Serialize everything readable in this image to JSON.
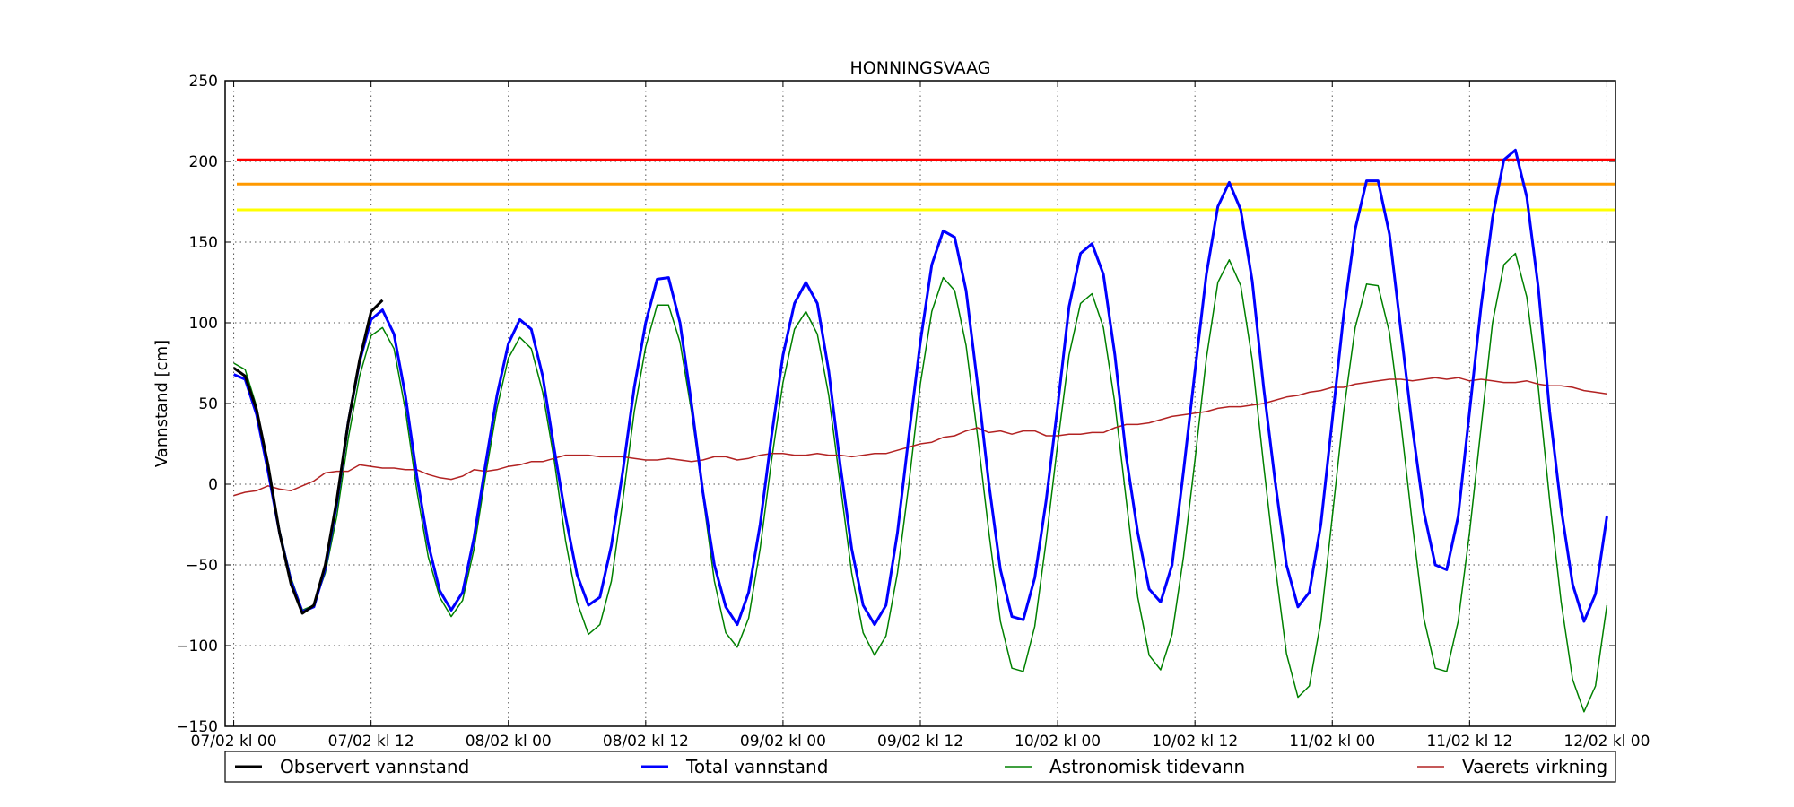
{
  "chart_data": {
    "type": "line",
    "title": "HONNINGSVAAG",
    "xlabel": "",
    "ylabel": "Vannstand [cm]",
    "ylim": [
      -150,
      250
    ],
    "yticks": [
      -150,
      -100,
      -50,
      0,
      50,
      100,
      150,
      200,
      250
    ],
    "ytick_labels": [
      "−150",
      "−100",
      "−50",
      "0",
      "50",
      "100",
      "150",
      "200",
      "250"
    ],
    "x_unit": "hours since 07/02 kl 00",
    "xlim": [
      -0.75,
      120.75
    ],
    "xticks": [
      0,
      12,
      24,
      36,
      48,
      60,
      72,
      84,
      96,
      108,
      120
    ],
    "xtick_labels": [
      "07/02 kl 00",
      "07/02 kl 12",
      "08/02 kl 00",
      "08/02 kl 12",
      "09/02 kl 00",
      "09/02 kl 12",
      "10/02 kl 00",
      "10/02 kl 12",
      "11/02 kl 00",
      "11/02 kl 12",
      "12/02 kl 00"
    ],
    "grid": true,
    "legend_position": "below",
    "thresholds": [
      {
        "value": 201,
        "color": "#ff0000"
      },
      {
        "value": 186,
        "color": "#ff9900"
      },
      {
        "value": 170,
        "color": "#ffff00"
      }
    ],
    "series": [
      {
        "name": "Observert vannstand",
        "color": "#000000",
        "width": 3,
        "x": [
          0,
          1,
          2,
          3,
          4,
          5,
          6,
          7,
          8,
          9,
          10,
          11,
          12,
          13,
          14
        ],
        "y": [
          72,
          67,
          46,
          12,
          -30,
          -62,
          -80,
          -75,
          -50,
          -10,
          38,
          77,
          107,
          114,
          null
        ]
      },
      {
        "name": "Total vannstand",
        "color": "#0000ff",
        "width": 3,
        "x": [
          0,
          1,
          2,
          3,
          4,
          5,
          6,
          7,
          8,
          9,
          10,
          11,
          12,
          13,
          14,
          15,
          16,
          17,
          18,
          19,
          20,
          21,
          22,
          23,
          24,
          25,
          26,
          27,
          28,
          29,
          30,
          31,
          32,
          33,
          34,
          35,
          36,
          37,
          38,
          39,
          40,
          41,
          42,
          43,
          44,
          45,
          46,
          47,
          48,
          49,
          50,
          51,
          52,
          53,
          54,
          55,
          56,
          57,
          58,
          59,
          60,
          61,
          62,
          63,
          64,
          65,
          66,
          67,
          68,
          69,
          70,
          71,
          72,
          73,
          74,
          75,
          76,
          77,
          78,
          79,
          80,
          81,
          82,
          83,
          84,
          85,
          86,
          87,
          88,
          89,
          90,
          91,
          92,
          93,
          94,
          95,
          96,
          97,
          98,
          99,
          100,
          101,
          102,
          103,
          104,
          105,
          106,
          107,
          108,
          109,
          110,
          111,
          112,
          113,
          114,
          115,
          116,
          117,
          118,
          119,
          120,
          121
        ],
        "y": [
          68,
          65,
          43,
          8,
          -30,
          -60,
          -79,
          -76,
          -52,
          -12,
          38,
          76,
          102,
          108,
          93,
          55,
          5,
          -37,
          -66,
          -78,
          -67,
          -33,
          12,
          55,
          87,
          102,
          96,
          67,
          22,
          -20,
          -56,
          -75,
          -70,
          -38,
          8,
          60,
          100,
          127,
          128,
          100,
          50,
          -5,
          -50,
          -76,
          -87,
          -67,
          -25,
          30,
          80,
          112,
          125,
          112,
          70,
          12,
          -40,
          -75,
          -87,
          -75,
          -30,
          30,
          88,
          136,
          157,
          153,
          120,
          62,
          0,
          -53,
          -82,
          -84,
          -58,
          -10,
          48,
          110,
          143,
          149,
          130,
          80,
          17,
          -30,
          -65,
          -73,
          -50,
          8,
          70,
          130,
          172,
          187,
          170,
          126,
          60,
          2,
          -50,
          -76,
          -67,
          -25,
          40,
          105,
          158,
          188,
          188,
          155,
          95,
          35,
          -17,
          -50,
          -53,
          -20,
          45,
          110,
          165,
          201,
          207,
          178,
          122,
          45,
          -15,
          -62,
          -85,
          -68,
          -20,
          null
        ]
      },
      {
        "name": "Astronomisk tidevann",
        "color": "#008000",
        "width": 1.5,
        "x": [
          0,
          1,
          2,
          3,
          4,
          5,
          6,
          7,
          8,
          9,
          10,
          11,
          12,
          13,
          14,
          15,
          16,
          17,
          18,
          19,
          20,
          21,
          22,
          23,
          24,
          25,
          26,
          27,
          28,
          29,
          30,
          31,
          32,
          33,
          34,
          35,
          36,
          37,
          38,
          39,
          40,
          41,
          42,
          43,
          44,
          45,
          46,
          47,
          48,
          49,
          50,
          51,
          52,
          53,
          54,
          55,
          56,
          57,
          58,
          59,
          60,
          61,
          62,
          63,
          64,
          65,
          66,
          67,
          68,
          69,
          70,
          71,
          72,
          73,
          74,
          75,
          76,
          77,
          78,
          79,
          80,
          81,
          82,
          83,
          84,
          85,
          86,
          87,
          88,
          89,
          90,
          91,
          92,
          93,
          94,
          95,
          96,
          97,
          98,
          99,
          100,
          101,
          102,
          103,
          104,
          105,
          106,
          107,
          108,
          109,
          110,
          111,
          112,
          113,
          114,
          115,
          116,
          117,
          118,
          119,
          120,
          121
        ],
        "y": [
          75,
          71,
          48,
          10,
          -28,
          -58,
          -78,
          -75,
          -55,
          -20,
          28,
          67,
          92,
          97,
          84,
          46,
          -4,
          -45,
          -70,
          -82,
          -72,
          -40,
          5,
          47,
          78,
          91,
          84,
          57,
          15,
          -35,
          -73,
          -93,
          -87,
          -60,
          -10,
          45,
          85,
          111,
          111,
          88,
          45,
          -7,
          -60,
          -92,
          -101,
          -83,
          -40,
          15,
          63,
          96,
          107,
          93,
          55,
          0,
          -55,
          -92,
          -106,
          -94,
          -55,
          0,
          62,
          107,
          128,
          120,
          86,
          30,
          -30,
          -85,
          -114,
          -116,
          -88,
          -35,
          25,
          80,
          112,
          118,
          97,
          50,
          -10,
          -70,
          -106,
          -115,
          -93,
          -45,
          15,
          78,
          125,
          139,
          123,
          77,
          12,
          -50,
          -105,
          -132,
          -125,
          -85,
          -20,
          45,
          97,
          124,
          123,
          94,
          38,
          -25,
          -83,
          -114,
          -116,
          -85,
          -30,
          35,
          100,
          136,
          143,
          116,
          60,
          -10,
          -73,
          -121,
          -141,
          -125,
          -75,
          null
        ]
      },
      {
        "name": "Vaerets virkning",
        "color": "#b22222",
        "width": 1.5,
        "x": [
          0,
          1,
          2,
          3,
          4,
          5,
          6,
          7,
          8,
          9,
          10,
          11,
          12,
          13,
          14,
          15,
          16,
          17,
          18,
          19,
          20,
          21,
          22,
          23,
          24,
          25,
          26,
          27,
          28,
          29,
          30,
          31,
          32,
          33,
          34,
          35,
          36,
          37,
          38,
          39,
          40,
          41,
          42,
          43,
          44,
          45,
          46,
          47,
          48,
          49,
          50,
          51,
          52,
          53,
          54,
          55,
          56,
          57,
          58,
          59,
          60,
          61,
          62,
          63,
          64,
          65,
          66,
          67,
          68,
          69,
          70,
          71,
          72,
          73,
          74,
          75,
          76,
          77,
          78,
          79,
          80,
          81,
          82,
          83,
          84,
          85,
          86,
          87,
          88,
          89,
          90,
          91,
          92,
          93,
          94,
          95,
          96,
          97,
          98,
          99,
          100,
          101,
          102,
          103,
          104,
          105,
          106,
          107,
          108,
          109,
          110,
          111,
          112,
          113,
          114,
          115,
          116,
          117,
          118,
          119,
          120,
          121
        ],
        "y": [
          -7,
          -5,
          -4,
          -1,
          -3,
          -4,
          -1,
          2,
          7,
          8,
          8,
          12,
          11,
          10,
          10,
          9,
          9,
          6,
          4,
          3,
          5,
          9,
          8,
          9,
          11,
          12,
          14,
          14,
          16,
          18,
          18,
          18,
          17,
          17,
          17,
          16,
          15,
          15,
          16,
          15,
          14,
          15,
          17,
          17,
          15,
          16,
          18,
          19,
          19,
          18,
          18,
          19,
          18,
          18,
          17,
          18,
          19,
          19,
          21,
          23,
          25,
          26,
          29,
          30,
          33,
          35,
          32,
          33,
          31,
          33,
          33,
          30,
          30,
          31,
          31,
          32,
          32,
          35,
          37,
          37,
          38,
          40,
          42,
          43,
          44,
          45,
          47,
          48,
          48,
          49,
          50,
          52,
          54,
          55,
          57,
          58,
          60,
          60,
          62,
          63,
          64,
          65,
          65,
          64,
          65,
          66,
          65,
          66,
          64,
          65,
          64,
          63,
          63,
          64,
          62,
          61,
          61,
          60,
          58,
          57,
          56,
          null
        ]
      }
    ]
  }
}
